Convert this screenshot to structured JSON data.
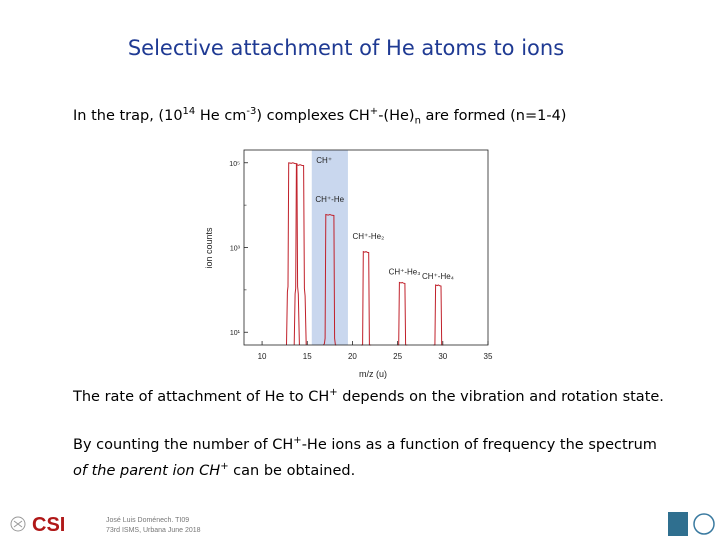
{
  "slide": {
    "title": "Selective attachment of He atoms to ions",
    "line1": {
      "a": "In the trap, (10",
      "sup1": "14",
      "b": " He cm",
      "sup2": "-3",
      "c": ") complexes CH",
      "sup3": "+",
      "d": "-(He)",
      "sub1": "n",
      "e": " are formed (n=1-4)"
    },
    "line2": {
      "a": "The rate of attachment of He to CH",
      "sup": "+",
      "b": " depends on the vibration and rotation state."
    },
    "line3": {
      "a": "By counting the number of CH",
      "sup": "+",
      "b": "-He ions as a function of frequency the spectrum",
      "c": "of the parent ion CH",
      "sup2": "+",
      "d": " can be obtained."
    },
    "footer": {
      "logo_text": "CSI",
      "line1": "José Luis Doménech. TI09",
      "line2": "73rd ISMS, Urbana June 2018"
    }
  },
  "colors": {
    "title": "#1f3a93",
    "trace": "#c0202a",
    "highlight": "#c9d7ee"
  },
  "chart_data": {
    "type": "line",
    "title": "",
    "xlabel": "m/z (u)",
    "ylabel": "ion counts",
    "yscale": "log",
    "xlim": [
      8,
      35
    ],
    "ylim": [
      5,
      200000
    ],
    "x_ticks": [
      10,
      15,
      20,
      25,
      30,
      35
    ],
    "y_ticks": [
      {
        "value": 10,
        "label": "10¹"
      },
      {
        "value": 1000,
        "label": "10³"
      },
      {
        "value": 100000,
        "label": "10⁵"
      }
    ],
    "minor_y_ticks": [
      100,
      10000
    ],
    "highlight_range": [
      15.5,
      19.5
    ],
    "series": [
      {
        "name": "",
        "peaks": [
          {
            "center": 13.4,
            "half_width": 0.45,
            "height": 100000
          },
          {
            "center": 14.2,
            "half_width": 0.4,
            "height": 90000
          },
          {
            "center": 17.5,
            "half_width": 0.45,
            "height": 6000
          },
          {
            "center": 21.5,
            "half_width": 0.3,
            "height": 800
          },
          {
            "center": 25.5,
            "half_width": 0.3,
            "height": 150
          },
          {
            "center": 29.5,
            "half_width": 0.3,
            "height": 130
          }
        ]
      }
    ],
    "annotations": [
      {
        "text": "CH⁺",
        "x": 16.0,
        "y": 100000
      },
      {
        "text": "CH⁺-He",
        "x": 15.9,
        "y": 12000
      },
      {
        "text": "CH⁺-He₂",
        "x": 20.0,
        "y": 1600
      },
      {
        "text": "CH⁺-He₃",
        "x": 24.0,
        "y": 230
      },
      {
        "text": "CH⁺-He₄",
        "x": 27.7,
        "y": 180
      }
    ]
  }
}
